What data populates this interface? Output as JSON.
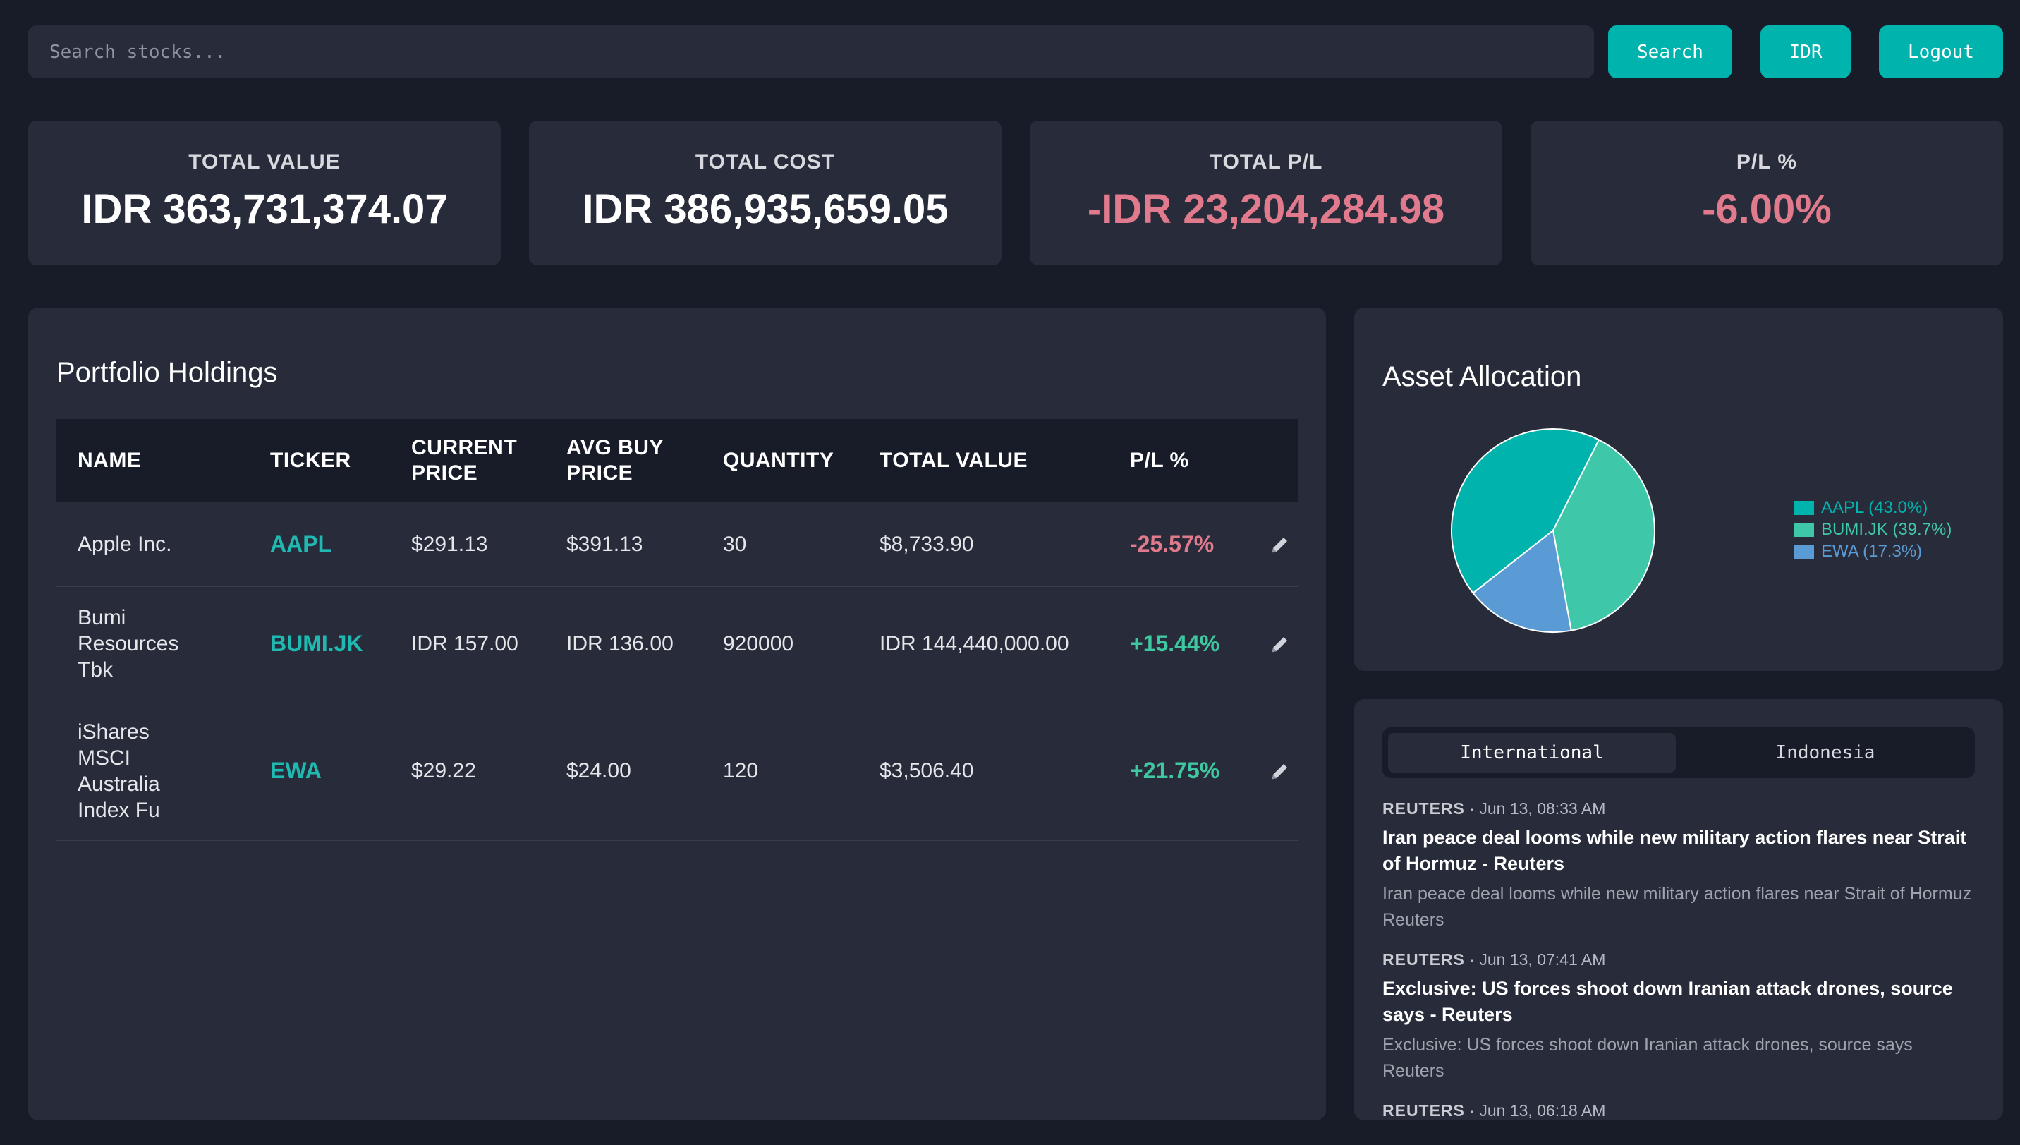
{
  "search": {
    "placeholder": "Search stocks...",
    "button": "Search"
  },
  "currency_button": "IDR",
  "logout_button": "Logout",
  "stats": [
    {
      "label": "TOTAL VALUE",
      "value": "IDR 363,731,374.07",
      "negative": false
    },
    {
      "label": "TOTAL COST",
      "value": "IDR 386,935,659.05",
      "negative": false
    },
    {
      "label": "TOTAL P/L",
      "value": "-IDR 23,204,284.98",
      "negative": true
    },
    {
      "label": "P/L %",
      "value": "-6.00%",
      "negative": true
    }
  ],
  "holdings": {
    "title": "Portfolio Holdings",
    "columns": [
      "NAME",
      "TICKER",
      "CURRENT PRICE",
      "AVG BUY PRICE",
      "QUANTITY",
      "TOTAL VALUE",
      "P/L %"
    ],
    "rows": [
      {
        "name": "Apple Inc.",
        "ticker": "AAPL",
        "current_price": "$291.13",
        "avg_buy_price": "$391.13",
        "quantity": "30",
        "total_value": "$8,733.90",
        "pl": "-25.57%",
        "pl_negative": true
      },
      {
        "name": "Bumi Resources Tbk",
        "ticker": "BUMI.JK",
        "current_price": "IDR 157.00",
        "avg_buy_price": "IDR 136.00",
        "quantity": "920000",
        "total_value": "IDR 144,440,000.00",
        "pl": "+15.44%",
        "pl_negative": false
      },
      {
        "name": "iShares MSCI Australia Index Fu",
        "ticker": "EWA",
        "current_price": "$29.22",
        "avg_buy_price": "$24.00",
        "quantity": "120",
        "total_value": "$3,506.40",
        "pl": "+21.75%",
        "pl_negative": false
      }
    ]
  },
  "allocation": {
    "title": "Asset Allocation"
  },
  "chart_data": {
    "type": "pie",
    "categories": [
      "AAPL",
      "BUMI.JK",
      "EWA"
    ],
    "values": [
      43.0,
      39.7,
      17.3
    ],
    "legend_labels": [
      "AAPL (43.0%)",
      "BUMI.JK (39.7%)",
      "EWA (17.3%)"
    ],
    "colors": [
      "#00b3ad",
      "#3ec7a8",
      "#5b9bd5"
    ],
    "legend": "right"
  },
  "news": {
    "tabs": [
      "International",
      "Indonesia"
    ],
    "active_tab": 0,
    "items": [
      {
        "source": "REUTERS",
        "time": "Jun 13, 08:33 AM",
        "title": "Iran peace deal looms while new military action flares near Strait of Hormuz - Reuters",
        "desc": "Iran peace deal looms while new military action flares near Strait of Hormuz  Reuters"
      },
      {
        "source": "REUTERS",
        "time": "Jun 13, 07:41 AM",
        "title": "Exclusive: US forces shoot down Iranian attack drones, source says - Reuters",
        "desc": "Exclusive: US forces shoot down Iranian attack drones, source says  Reuters"
      },
      {
        "source": "REUTERS",
        "time": "Jun 13, 06:18 AM",
        "title": "",
        "desc": ""
      }
    ]
  },
  "colors": {
    "accent": "#00b3ad",
    "negative": "#e07a8c",
    "positive": "#3ec7a0",
    "background": "#181c28",
    "panel": "#282c3a"
  },
  "icons": {
    "edit": "pencil-icon"
  }
}
